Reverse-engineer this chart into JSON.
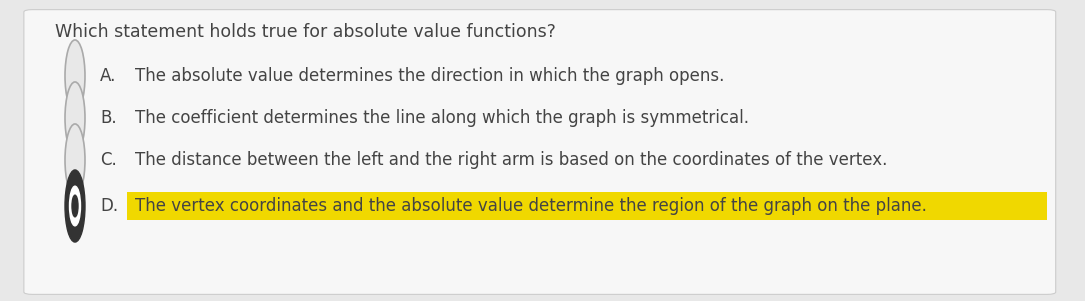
{
  "question": "Which statement holds true for absolute value functions?",
  "options": [
    {
      "label": "A.",
      "text": "The absolute value determines the direction in which the graph opens.",
      "selected": false,
      "highlighted": false
    },
    {
      "label": "B.",
      "text": "The coefficient determines the line along which the graph is symmetrical.",
      "selected": false,
      "highlighted": false
    },
    {
      "label": "C.",
      "text": "The distance between the left and the right arm is based on the coordinates of the vertex.",
      "selected": false,
      "highlighted": false
    },
    {
      "label": "D.",
      "text": "The vertex coordinates and the absolute value determine the region of the graph on the plane.",
      "selected": true,
      "highlighted": true
    }
  ],
  "bg_color": "#e8e8e8",
  "card_color": "#f7f7f7",
  "highlight_color": "#f0d800",
  "question_fontsize": 12.5,
  "option_fontsize": 12,
  "text_color": "#444444",
  "circle_color": "#aaaaaa",
  "selected_fill_color": "#333333",
  "card_edge_color": "#cccccc"
}
